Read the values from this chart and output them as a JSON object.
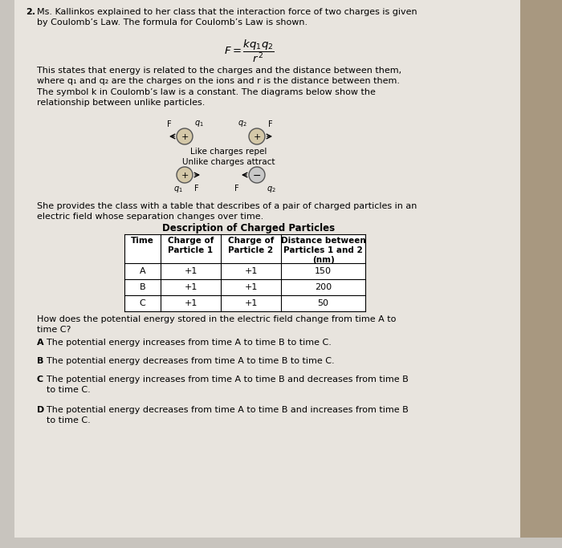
{
  "bg_color": "#c8c4be",
  "paper_color": "#e8e4de",
  "title_num": "2.",
  "title_text": "Ms. Kallinkos explained to her class that the interaction force of two charges is given\nby Coulomb’s Law. The formula for Coulomb’s Law is shown.",
  "paragraph1": "This states that energy is related to the charges and the distance between them,\nwhere q₁ and q₂ are the charges on the ions and r is the distance between them.\nThe symbol k in Coulomb’s law is a constant. The diagrams below show the\nrelationship between unlike particles.",
  "diagram_label": "Like charges repel\nUnlike charges attract",
  "paragraph2": "She provides the class with a table that describes of a pair of charged particles in an\nelectric field whose separation changes over time.",
  "table_title": "Description of Charged Particles",
  "table_headers": [
    "Time",
    "Charge of\nParticle 1",
    "Charge of\nParticle 2",
    "Distance between\nParticles 1 and 2\n(nm)"
  ],
  "table_rows": [
    [
      "A",
      "+1",
      "+1",
      "150"
    ],
    [
      "B",
      "+1",
      "+1",
      "200"
    ],
    [
      "C",
      "+1",
      "+1",
      "50"
    ]
  ],
  "question": "How does the potential energy stored in the electric field change from time A to\ntime C?",
  "answers": [
    [
      "A",
      "The potential energy increases from time A to time B to time C."
    ],
    [
      "B",
      "The potential energy decreases from time A to time B to time C."
    ],
    [
      "C",
      "The potential energy increases from time A to time B and decreases from time B\nto time C."
    ],
    [
      "D",
      "The potential energy decreases from time A to time B and increases from time B\nto time C."
    ]
  ]
}
